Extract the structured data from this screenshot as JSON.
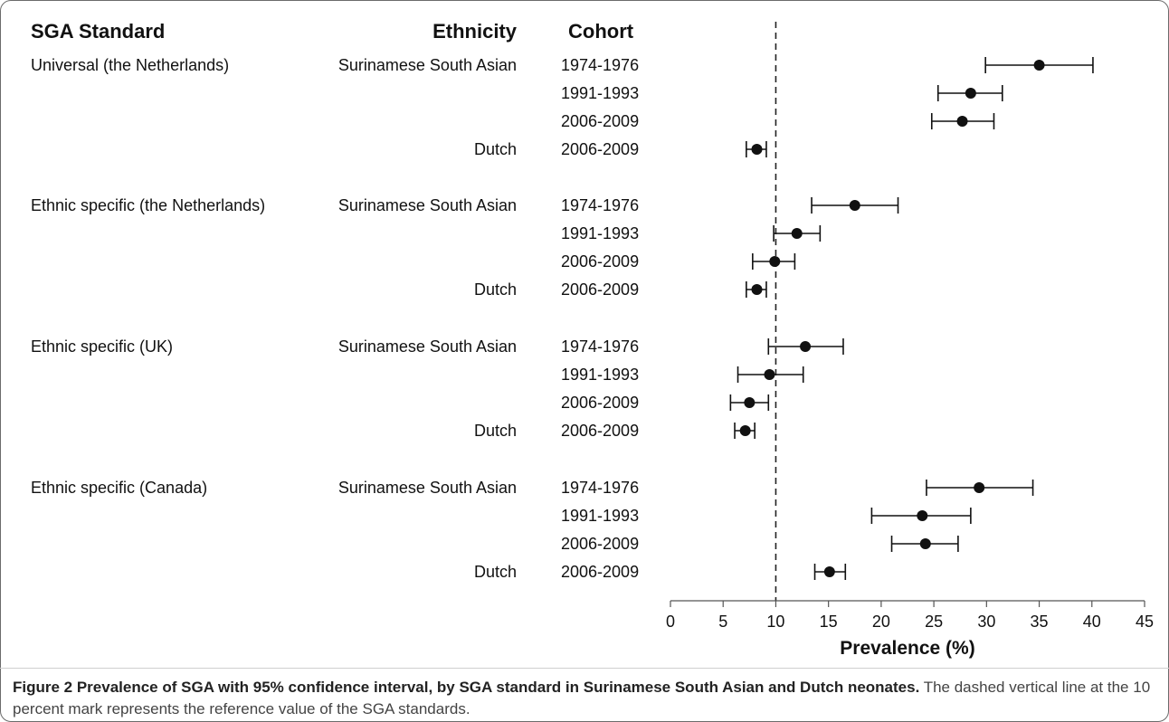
{
  "headers": {
    "standard": "SGA Standard",
    "ethnicity": "Ethnicity",
    "cohort": "Cohort"
  },
  "rows": [
    {
      "standard": "Universal (the Netherlands)",
      "ethnicity": "Surinamese South Asian",
      "cohort": "1974-1976"
    },
    {
      "standard": "",
      "ethnicity": "",
      "cohort": "1991-1993"
    },
    {
      "standard": "",
      "ethnicity": "",
      "cohort": "2006-2009"
    },
    {
      "standard": "",
      "ethnicity": "Dutch",
      "cohort": "2006-2009"
    },
    {
      "standard": "Ethnic specific (the Netherlands)",
      "ethnicity": "Surinamese South Asian",
      "cohort": "1974-1976"
    },
    {
      "standard": "",
      "ethnicity": "",
      "cohort": "1991-1993"
    },
    {
      "standard": "",
      "ethnicity": "",
      "cohort": "2006-2009"
    },
    {
      "standard": "",
      "ethnicity": "Dutch",
      "cohort": "2006-2009"
    },
    {
      "standard": "Ethnic specific (UK)",
      "ethnicity": "Surinamese South Asian",
      "cohort": "1974-1976"
    },
    {
      "standard": "",
      "ethnicity": "",
      "cohort": "1991-1993"
    },
    {
      "standard": "",
      "ethnicity": "",
      "cohort": "2006-2009"
    },
    {
      "standard": "",
      "ethnicity": "Dutch",
      "cohort": "2006-2009"
    },
    {
      "standard": "Ethnic specific (Canada)",
      "ethnicity": "Surinamese South Asian",
      "cohort": "1974-1976"
    },
    {
      "standard": "",
      "ethnicity": "",
      "cohort": "1991-1993"
    },
    {
      "standard": "",
      "ethnicity": "",
      "cohort": "2006-2009"
    },
    {
      "standard": "",
      "ethnicity": "Dutch",
      "cohort": "2006-2009"
    }
  ],
  "chart_data": {
    "type": "scatter",
    "subtype": "forest-plot",
    "xlabel": "Prevalence (%)",
    "xlim": [
      0,
      45
    ],
    "xticks": [
      0,
      5,
      10,
      15,
      20,
      25,
      30,
      35,
      40,
      45
    ],
    "reference_line": 10,
    "points": [
      {
        "estimate": 35.0,
        "lower": 29.9,
        "upper": 40.1
      },
      {
        "estimate": 28.5,
        "lower": 25.4,
        "upper": 31.5
      },
      {
        "estimate": 27.7,
        "lower": 24.8,
        "upper": 30.7
      },
      {
        "estimate": 8.2,
        "lower": 7.2,
        "upper": 9.1
      },
      {
        "estimate": 17.5,
        "lower": 13.4,
        "upper": 21.6
      },
      {
        "estimate": 12.0,
        "lower": 9.8,
        "upper": 14.2
      },
      {
        "estimate": 9.9,
        "lower": 7.8,
        "upper": 11.8
      },
      {
        "estimate": 8.2,
        "lower": 7.2,
        "upper": 9.1
      },
      {
        "estimate": 12.8,
        "lower": 9.3,
        "upper": 16.4
      },
      {
        "estimate": 9.4,
        "lower": 6.4,
        "upper": 12.6
      },
      {
        "estimate": 7.5,
        "lower": 5.7,
        "upper": 9.3
      },
      {
        "estimate": 7.1,
        "lower": 6.1,
        "upper": 8.0
      },
      {
        "estimate": 29.3,
        "lower": 24.3,
        "upper": 34.4
      },
      {
        "estimate": 23.9,
        "lower": 19.1,
        "upper": 28.5
      },
      {
        "estimate": 24.2,
        "lower": 21.0,
        "upper": 27.3
      },
      {
        "estimate": 15.1,
        "lower": 13.7,
        "upper": 16.6
      }
    ],
    "grid": false,
    "colors": {
      "marker": "#111111",
      "line": "#111111"
    }
  },
  "caption": {
    "bold": "Figure 2 Prevalence of SGA with 95% confidence interval, by SGA standard in Surinamese South Asian and Dutch neonates.",
    "plain": " The dashed vertical line at the 10 percent mark represents the reference value of the SGA standards."
  }
}
